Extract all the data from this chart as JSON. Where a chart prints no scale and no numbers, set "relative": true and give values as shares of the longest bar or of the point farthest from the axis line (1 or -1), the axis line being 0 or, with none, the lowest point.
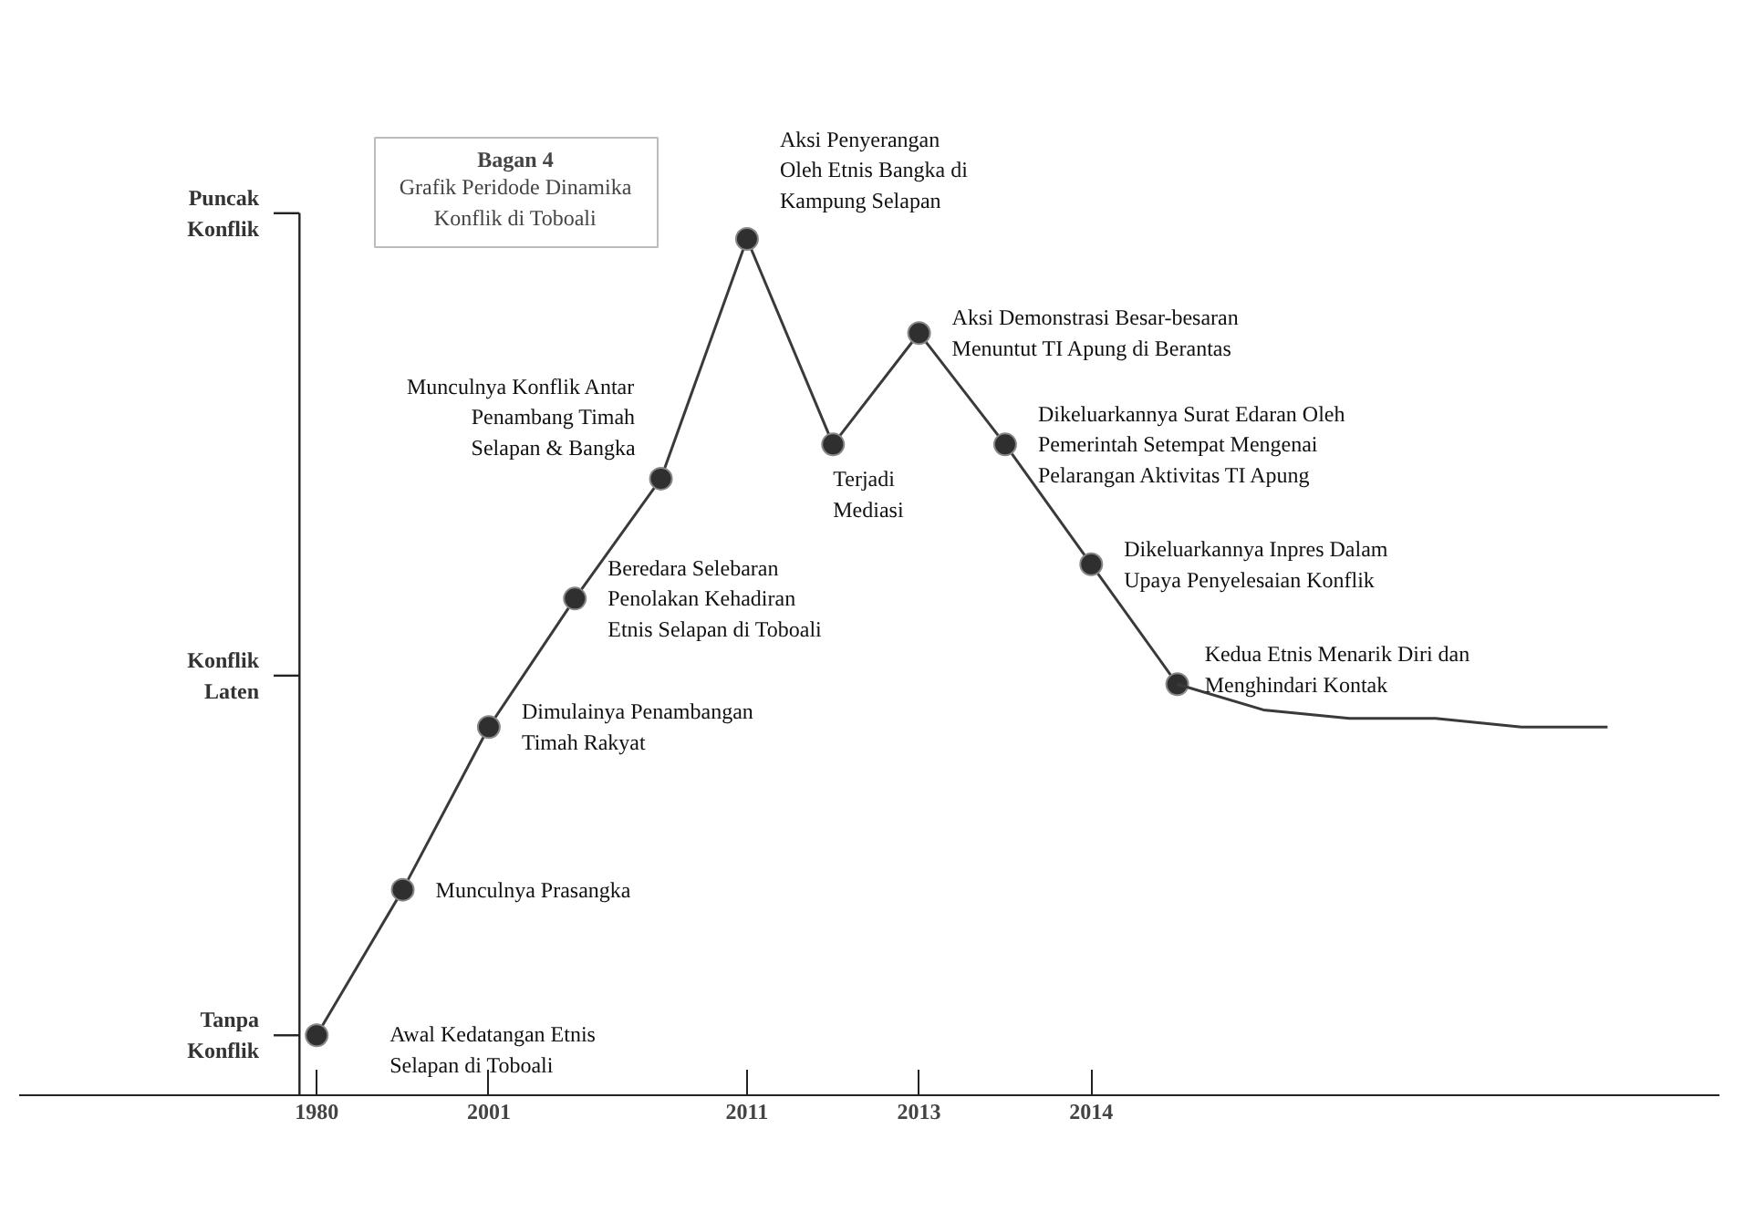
{
  "chart_data": {
    "type": "line",
    "relative": true,
    "title": "Bagan 4",
    "subtitle": "Grafik Peridode Dinamika\nKonflik di Toboali",
    "categories": [
      "1980",
      null,
      "2001",
      null,
      null,
      "2011",
      null,
      "2013",
      null,
      "2014",
      null,
      null,
      null,
      null,
      null,
      null,
      null
    ],
    "series": [
      {
        "color": "#3a3a3a",
        "marker": "circle",
        "values": [
          0.07,
          0.24,
          0.43,
          0.58,
          0.72,
          1,
          0.76,
          0.89,
          0.76,
          0.62,
          0.48,
          null,
          null,
          null,
          null,
          null,
          null
        ]
      },
      {
        "color": "#3a3a3a",
        "marker": "none",
        "values": [
          null,
          null,
          null,
          null,
          null,
          null,
          null,
          null,
          null,
          null,
          0.48,
          0.45,
          0.44,
          0.44,
          0.43,
          0.43,
          null
        ]
      }
    ],
    "ref_lines": [
      {
        "axis": "y",
        "value": 0.07,
        "label": "Tanpa\nKonflik"
      },
      {
        "axis": "y",
        "value": 0.49,
        "label": "Konflik\nLaten"
      },
      {
        "axis": "y",
        "value": 1.03,
        "label": "Puncak\nKonflik"
      }
    ],
    "grid": false,
    "line_style": "solid",
    "annotations": [
      "Awal  Kedatangan  Etnis\nSelapan di Toboali",
      "Munculnya Prasangka",
      "Dimulainya Penambangan\nTimah Rakyat",
      "Beredara Selebaran\nPenolakan Kehadiran\nEtnis Selapan di Toboali",
      "Munculnya Konflik Antar\nPenambang Timah\nSelapan & Bangka",
      "Aksi Penyerangan\nOleh Etnis Bangka di\nKampung Selapan",
      "Terjadi\nMediasi",
      "Aksi  Demonstrasi  Besar-besaran\nMenuntut TI Apung di Berantas",
      "Dikeluarkannya Surat Edaran Oleh\nPemerintah   Setempat  Mengenai\nPelarangan Aktivitas TI Apung",
      "Dikeluarkannya Inpres Dalam\nUpaya Penyelesaian Konflik",
      "Kedua Etnis Menarik Diri dan\nMenghindari Kontak"
    ]
  }
}
